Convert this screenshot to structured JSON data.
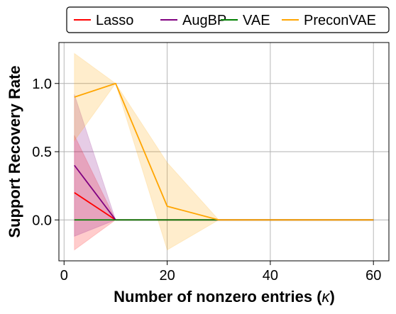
{
  "chart_data": {
    "type": "line",
    "xlabel": "Number of nonzero entries (",
    "xlabel_symbol": "κ",
    "xlabel_close": ")",
    "ylabel": "Support Recovery Rate",
    "xlim": [
      -1,
      63
    ],
    "ylim": [
      -0.3,
      1.3
    ],
    "xticks": [
      0,
      20,
      40,
      60
    ],
    "yticks": [
      0.0,
      0.5,
      1.0
    ],
    "xtick_labels": [
      "0",
      "20",
      "40",
      "60"
    ],
    "ytick_labels": [
      "0.0",
      "0.5",
      "1.0"
    ],
    "grid": true,
    "legend_position": "top",
    "x": [
      2,
      10,
      20,
      30,
      60
    ],
    "series": [
      {
        "name": "Lasso",
        "color": "#ff0000",
        "values": [
          0.2,
          0.0,
          0.0,
          0.0,
          0.0
        ],
        "lower": [
          -0.22,
          0.0,
          0.0,
          0.0,
          0.0
        ],
        "upper": [
          0.62,
          0.0,
          0.0,
          0.0,
          0.0
        ]
      },
      {
        "name": "AugBP",
        "color": "#800080",
        "values": [
          0.4,
          0.0,
          0.0,
          0.0,
          0.0
        ],
        "lower": [
          -0.12,
          0.0,
          0.0,
          0.0,
          0.0
        ],
        "upper": [
          0.92,
          0.0,
          0.0,
          0.0,
          0.0
        ]
      },
      {
        "name": "VAE",
        "color": "#008000",
        "values": [
          0.0,
          0.0,
          0.0,
          0.0,
          0.0
        ],
        "lower": [
          0.0,
          0.0,
          0.0,
          0.0,
          0.0
        ],
        "upper": [
          0.0,
          0.0,
          0.0,
          0.0,
          0.0
        ]
      },
      {
        "name": "PreconVAE",
        "color": "#ffa500",
        "values": [
          0.9,
          1.0,
          0.1,
          0.0,
          0.0
        ],
        "lower": [
          0.58,
          1.0,
          -0.22,
          0.0,
          0.0
        ],
        "upper": [
          1.22,
          1.0,
          0.42,
          0.0,
          0.0
        ]
      }
    ]
  }
}
